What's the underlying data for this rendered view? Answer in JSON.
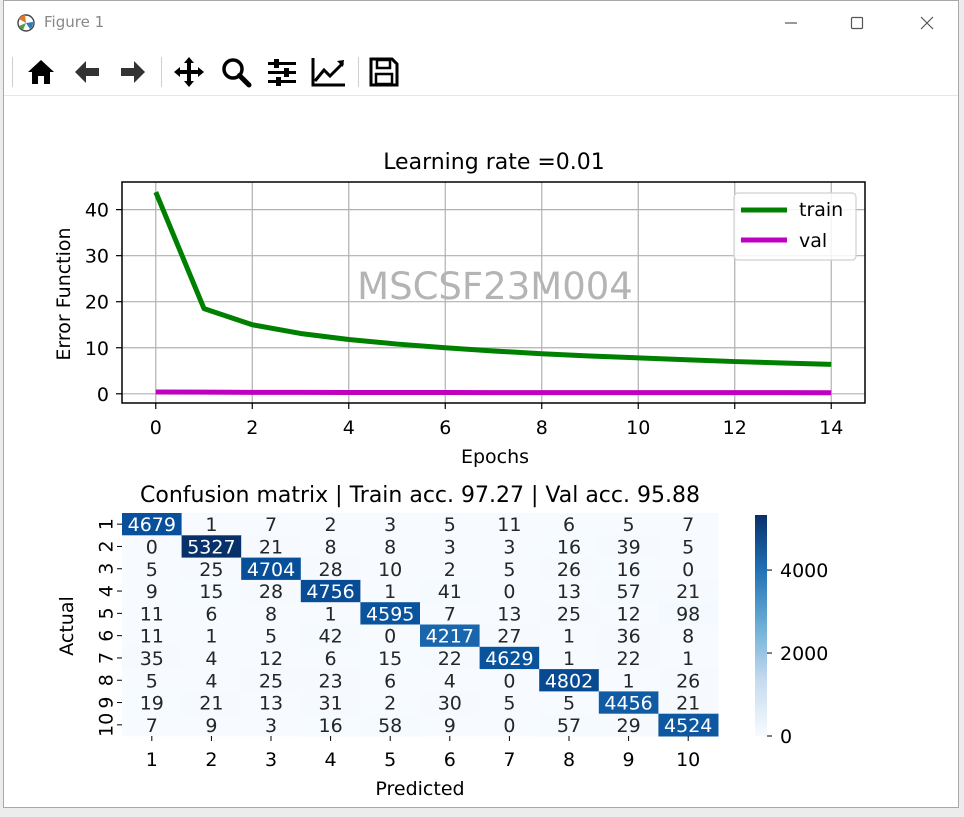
{
  "window": {
    "title": "Figure 1"
  },
  "toolbar": {
    "buttons": [
      {
        "name": "home-icon"
      },
      {
        "name": "back-arrow-icon"
      },
      {
        "name": "forward-arrow-icon"
      },
      {
        "name": "pan-icon"
      },
      {
        "name": "zoom-icon"
      },
      {
        "name": "configure-subplots-icon"
      },
      {
        "name": "edit-axis-icon"
      },
      {
        "name": "save-icon"
      }
    ]
  },
  "colors": {
    "train": "#008000",
    "val": "#c000c0",
    "cm_low": "#f7fbff",
    "cm_high": "#08306b"
  },
  "watermark": "MSCSF23M004",
  "chart_data": [
    {
      "type": "line",
      "title": "Learning rate =0.01",
      "xlabel": "Epochs",
      "ylabel": "Error Function",
      "xlim": [
        -0.7,
        14.7
      ],
      "ylim": [
        -2,
        46
      ],
      "xticks": [
        "0",
        "2",
        "4",
        "6",
        "8",
        "10",
        "12",
        "14"
      ],
      "yticks": [
        "0",
        "10",
        "20",
        "30",
        "40"
      ],
      "grid": true,
      "legend_position": "upper right",
      "x": [
        0,
        1,
        2,
        3,
        4,
        5,
        6,
        7,
        8,
        9,
        10,
        11,
        12,
        13,
        14
      ],
      "series": [
        {
          "name": "train",
          "values": [
            43.8,
            18.5,
            15.0,
            13.1,
            11.8,
            10.8,
            10.0,
            9.3,
            8.7,
            8.2,
            7.8,
            7.4,
            7.0,
            6.7,
            6.4
          ]
        },
        {
          "name": "val",
          "values": [
            0.4,
            0.35,
            0.32,
            0.3,
            0.29,
            0.28,
            0.27,
            0.26,
            0.26,
            0.25,
            0.25,
            0.24,
            0.24,
            0.24,
            0.23
          ]
        }
      ]
    },
    {
      "type": "heatmap",
      "title": "Confusion matrix | Train acc. 97.27 | Val acc. 95.88",
      "xlabel": "Predicted",
      "ylabel": "Actual",
      "x_categories": [
        "1",
        "2",
        "3",
        "4",
        "5",
        "6",
        "7",
        "8",
        "9",
        "10"
      ],
      "y_categories": [
        "1",
        "2",
        "3",
        "4",
        "5",
        "6",
        "7",
        "8",
        "9",
        "10"
      ],
      "colorbar_ticks": [
        "0",
        "2000",
        "4000"
      ],
      "vmax": 5327,
      "matrix": [
        [
          4679,
          1,
          7,
          2,
          3,
          5,
          11,
          6,
          5,
          7
        ],
        [
          0,
          5327,
          21,
          8,
          8,
          3,
          3,
          16,
          39,
          5
        ],
        [
          5,
          25,
          4704,
          28,
          10,
          2,
          5,
          26,
          16,
          0
        ],
        [
          9,
          15,
          28,
          4756,
          1,
          41,
          0,
          13,
          57,
          21
        ],
        [
          11,
          6,
          8,
          1,
          4595,
          7,
          13,
          25,
          12,
          98
        ],
        [
          11,
          1,
          5,
          42,
          0,
          4217,
          27,
          1,
          36,
          8
        ],
        [
          35,
          4,
          12,
          6,
          15,
          22,
          4629,
          1,
          22,
          1
        ],
        [
          5,
          4,
          25,
          23,
          6,
          4,
          0,
          4802,
          1,
          26
        ],
        [
          19,
          21,
          13,
          31,
          2,
          30,
          5,
          5,
          4456,
          21
        ],
        [
          7,
          9,
          3,
          16,
          58,
          9,
          0,
          57,
          29,
          4524
        ]
      ]
    }
  ]
}
